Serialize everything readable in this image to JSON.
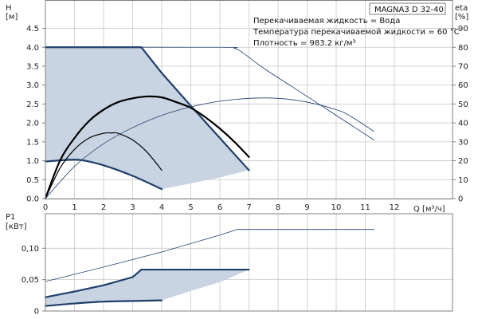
{
  "title": "MAGNA3 D 32-40",
  "info": [
    "Перекачиваемая жидкость = Вода",
    "Температура перекачиваемой жидкости = 60 °C",
    "Плотность = 983.2 кг/м³"
  ],
  "colors": {
    "area": "#c9d4e2",
    "pump_curve": "#1f3f6b",
    "line": "#000000",
    "grid": "#c8c8c8",
    "frame": "#7f7f7f"
  },
  "chart_data": [
    {
      "type": "line",
      "name": "H-Q",
      "xlabel": "Q [м³/ч]",
      "ylabel_left": [
        "H",
        "[м]"
      ],
      "ylabel_right": [
        "eta",
        "[%]"
      ],
      "xlim": [
        0,
        14
      ],
      "ylim": [
        0,
        5.25
      ],
      "y2lim": [
        0,
        105
      ],
      "x_ticks": [
        0,
        1,
        2,
        3,
        4,
        5,
        6,
        7,
        8,
        9,
        10,
        11,
        12
      ],
      "y_ticks": [
        "0.0",
        "0.5",
        "1.0",
        "1.5",
        "2.0",
        "2.5",
        "3.0",
        "3.5",
        "4.0",
        "4.5"
      ],
      "y2_ticks": [
        0,
        10,
        20,
        30,
        40,
        50,
        60,
        70,
        80,
        90
      ],
      "grid": true,
      "operating_area": {
        "upper": {
          "x": [
            0,
            3.3,
            4.0,
            5.0,
            6.0,
            7.0
          ],
          "y": [
            4.0,
            4.0,
            3.32,
            2.45,
            1.6,
            0.75
          ]
        },
        "lower": {
          "x": [
            0,
            1.0,
            2.0,
            3.0,
            4.0,
            5.0,
            6.0,
            7.0
          ],
          "y": [
            0.98,
            1.03,
            0.88,
            0.6,
            0.25,
            0.4,
            0.56,
            0.75
          ]
        }
      },
      "series": [
        {
          "role": "max_head",
          "axis": "left",
          "style": "pump",
          "x": [
            0,
            3.3,
            4.0,
            5.0,
            6.0,
            7.0
          ],
          "y": [
            4.0,
            4.0,
            3.32,
            2.45,
            1.6,
            0.75
          ]
        },
        {
          "role": "min_head",
          "axis": "left",
          "style": "pump",
          "x": [
            0,
            1.0,
            1.5,
            2.0,
            2.5,
            3.0,
            3.5,
            4.0
          ],
          "y": [
            0.98,
            1.03,
            0.98,
            0.88,
            0.75,
            0.6,
            0.43,
            0.25
          ]
        },
        {
          "role": "max_head_extended",
          "axis": "left",
          "style": "thin",
          "x": [
            0,
            6.0,
            6.5,
            6.8,
            7.5,
            8.5,
            9.5,
            10.5,
            11.3
          ],
          "y": [
            4.0,
            4.0,
            3.97,
            3.85,
            3.45,
            2.95,
            2.45,
            1.95,
            1.55
          ]
        },
        {
          "role": "eta_max",
          "axis": "right",
          "style": "thick",
          "x": [
            0,
            0.5,
            1.0,
            1.5,
            2.0,
            2.5,
            3.0,
            3.5,
            4.0,
            4.5,
            5.0,
            5.5,
            6.0,
            6.5,
            7.0
          ],
          "y": [
            0,
            20,
            32,
            41,
            47,
            51,
            53,
            54,
            53.5,
            51,
            48,
            43,
            37,
            30,
            22
          ]
        },
        {
          "role": "eta_min",
          "axis": "right",
          "style": "medium",
          "x": [
            0,
            0.5,
            1.0,
            1.5,
            2.0,
            2.3,
            2.5,
            3.0,
            3.5,
            4.0
          ],
          "y": [
            0,
            16,
            26,
            32,
            34.5,
            34.7,
            34.5,
            31,
            24.5,
            15
          ]
        },
        {
          "role": "eta_extended",
          "axis": "right",
          "style": "thin",
          "x": [
            0,
            1.0,
            2.0,
            3.0,
            4.0,
            5.0,
            6.0,
            7.0,
            8.0,
            9.0,
            10.0,
            10.5,
            11.3
          ],
          "y": [
            0,
            17,
            29,
            37.5,
            44,
            48.5,
            51.5,
            53,
            53,
            51,
            47,
            43.5,
            35.5
          ]
        }
      ]
    },
    {
      "type": "line",
      "name": "P1-Q",
      "xlim": [
        0,
        14
      ],
      "ylabel_left": [
        "P1",
        "[кВт]"
      ],
      "ylim": [
        0,
        0.155
      ],
      "y_ticks": [
        "0",
        "0,05",
        "0,10"
      ],
      "grid": true,
      "operating_area": {
        "upper": {
          "x": [
            0,
            1.0,
            2.0,
            3.0,
            3.3,
            7.0
          ],
          "y": [
            0.022,
            0.031,
            0.041,
            0.054,
            0.066,
            0.066
          ]
        },
        "lower": {
          "x": [
            0,
            1.0,
            2.0,
            3.0,
            4.0,
            5.0,
            6.0,
            7.0
          ],
          "y": [
            0.008,
            0.012,
            0.015,
            0.016,
            0.017,
            0.032,
            0.046,
            0.066
          ]
        }
      },
      "series": [
        {
          "role": "p1_max",
          "style": "pump",
          "x": [
            0,
            1.0,
            2.0,
            3.0,
            3.3,
            7.0
          ],
          "y": [
            0.022,
            0.031,
            0.041,
            0.054,
            0.066,
            0.066
          ]
        },
        {
          "role": "p1_min",
          "style": "pump",
          "x": [
            0,
            1.0,
            2.0,
            3.0,
            4.0
          ],
          "y": [
            0.008,
            0.012,
            0.015,
            0.016,
            0.017
          ]
        },
        {
          "role": "p1_extended",
          "style": "thin",
          "x": [
            0,
            2.0,
            4.0,
            6.0,
            6.6,
            7.0,
            11.3
          ],
          "y": [
            0.047,
            0.07,
            0.094,
            0.121,
            0.13,
            0.13,
            0.13
          ]
        }
      ]
    }
  ]
}
